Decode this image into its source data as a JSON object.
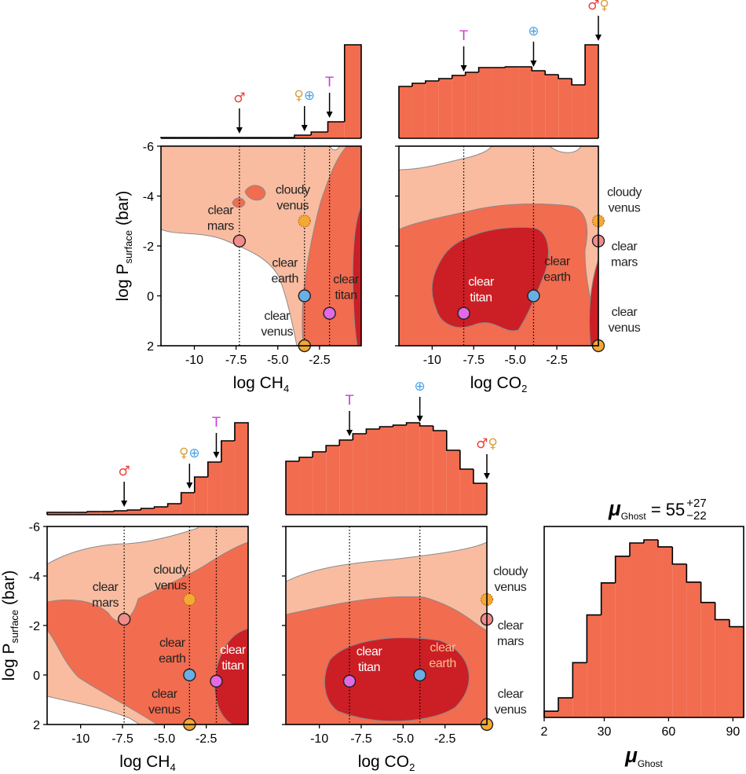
{
  "chart_data": [
    {
      "type": "corner",
      "xlabel": {
        "text": "log CH",
        "sub": "4"
      },
      "ylabel": {
        "text": "log P",
        "sub": "surface",
        "unit": " (bar)"
      },
      "xlim": [
        -12,
        0
      ],
      "ylim": [
        2,
        -6
      ],
      "xticks": [
        -10,
        -7.5,
        {
          "value": -5,
          "label": "-5.0"
        },
        -2.5
      ],
      "yticks": [
        -6,
        -4,
        -2,
        0,
        2
      ],
      "color": "#f26c4f",
      "bins": [
        -12,
        -11,
        -10,
        -9,
        -8,
        -7,
        -6,
        -5,
        -4,
        -3,
        -2,
        -1,
        0
      ],
      "counts": [
        1,
        1,
        1,
        1,
        1,
        1,
        1,
        1,
        4,
        8,
        21,
        119
      ],
      "arrows": [
        {
          "x": -7.3,
          "labels": [
            {
              "text": "♂",
              "color": "#e8413a"
            }
          ]
        },
        {
          "x": -3.4,
          "labels": [
            {
              "text": "♀",
              "color": "#d9a03a"
            },
            {
              "text": "⊕",
              "color": "#4aa3e8"
            }
          ]
        },
        {
          "x": -1.9,
          "labels": [
            {
              "text": "T",
              "color": "#c93dd6"
            }
          ]
        }
      ],
      "markers": [
        {
          "lines": [
            "clear",
            "mars"
          ],
          "x": -7.3,
          "y": -2.2,
          "color": "#f28c8c",
          "vline": true
        },
        {
          "lines": [
            "cloudy",
            "venus"
          ],
          "x": -3.4,
          "y": -3.0,
          "color": "#f5a833",
          "edge": "dotted"
        },
        {
          "lines": [
            "clear",
            "earth"
          ],
          "x": -3.4,
          "y": 0,
          "color": "#6aaee6",
          "vline": true
        },
        {
          "lines": [
            "clear",
            "titan"
          ],
          "x": -1.9,
          "y": 0.7,
          "color": "#e26ae6",
          "vline": true
        },
        {
          "lines": [
            "clear",
            "venus"
          ],
          "x": -3.4,
          "y": 2,
          "color": "#f5a833"
        }
      ]
    },
    {
      "type": "corner",
      "xlabel": {
        "text": "log CO",
        "sub": "2"
      },
      "xlim": [
        -12,
        0
      ],
      "ylim": [
        2,
        -6
      ],
      "xticks": [
        -10,
        -7.5,
        {
          "value": -5,
          "label": "-5.0"
        },
        -2.5
      ],
      "yticks": [
        -6,
        -4,
        -2,
        0,
        2
      ],
      "color": "#f26c4f",
      "bins": [
        -12,
        -11.2,
        -10.4,
        -9.6,
        -8.8,
        -8,
        -7.2,
        -6.4,
        -5.6,
        -4.8,
        -4,
        -3.2,
        -2.4,
        -1.6,
        -0.8,
        0
      ],
      "counts": [
        66,
        70,
        73,
        76,
        80,
        84,
        90,
        90,
        91,
        91,
        86,
        81,
        76,
        68,
        119
      ],
      "arrows": [
        {
          "x": -8.1,
          "labels": [
            {
              "text": "T",
              "color": "#c93dd6"
            }
          ]
        },
        {
          "x": -3.9,
          "labels": [
            {
              "text": "⊕",
              "color": "#4aa3e8"
            }
          ]
        },
        {
          "x": 0,
          "labels": [
            {
              "text": "♂",
              "color": "#e8413a"
            },
            {
              "text": "♀",
              "color": "#d9a03a"
            }
          ]
        }
      ],
      "markers": [
        {
          "lines": [
            "clear",
            "mars"
          ],
          "x": 0,
          "y": -2.2,
          "color": "#f28c8c"
        },
        {
          "lines": [
            "cloudy",
            "venus"
          ],
          "x": 0,
          "y": -3.0,
          "color": "#f5a833",
          "edge": "dotted"
        },
        {
          "lines": [
            "clear",
            "earth"
          ],
          "x": -3.9,
          "y": 0,
          "color": "#6aaee6",
          "vline": true
        },
        {
          "lines": [
            "clear",
            "titan"
          ],
          "x": -8.1,
          "y": 0.7,
          "color": "#e26ae6",
          "vline": true
        },
        {
          "lines": [
            "clear",
            "venus"
          ],
          "x": 0,
          "y": 2,
          "color": "#f5a833"
        }
      ]
    },
    {
      "type": "corner",
      "xlabel": {
        "text": "log CH",
        "sub": "4"
      },
      "ylabel": {
        "text": "log P",
        "sub": "surface",
        "unit": " (bar)"
      },
      "xlim": [
        -12,
        0
      ],
      "ylim": [
        2,
        -6
      ],
      "xticks": [
        -10,
        -7.5,
        {
          "value": -5,
          "label": "-5.0"
        },
        -2.5
      ],
      "yticks": [
        -6,
        -4,
        -2,
        0,
        2
      ],
      "color": "#f26c4f",
      "bins": [
        -12,
        -11.2,
        -10.4,
        -9.6,
        -8.8,
        -8,
        -7.2,
        -6.4,
        -5.6,
        -4.8,
        -4,
        -3.2,
        -2.4,
        -1.6,
        -0.8,
        0
      ],
      "counts": [
        3,
        3,
        3,
        4,
        4,
        5,
        6,
        8,
        10,
        14,
        28,
        48,
        67,
        94,
        117
      ],
      "arrows": [
        {
          "x": -7.4,
          "labels": [
            {
              "text": "♂",
              "color": "#e8413a"
            }
          ]
        },
        {
          "x": -3.5,
          "labels": [
            {
              "text": "♀",
              "color": "#d9a03a"
            },
            {
              "text": "⊕",
              "color": "#4aa3e8"
            }
          ]
        },
        {
          "x": -1.9,
          "labels": [
            {
              "text": "T",
              "color": "#c93dd6"
            }
          ]
        }
      ],
      "markers": [
        {
          "lines": [
            "clear",
            "mars"
          ],
          "x": -7.4,
          "y": -2.25,
          "color": "#f28c8c",
          "vline": true
        },
        {
          "lines": [
            "cloudy",
            "venus"
          ],
          "x": -3.5,
          "y": -3.05,
          "color": "#f5a833",
          "edge": "dotted"
        },
        {
          "lines": [
            "clear",
            "earth"
          ],
          "x": -3.5,
          "y": 0,
          "color": "#6aaee6",
          "vline": true
        },
        {
          "lines": [
            "clear",
            "titan"
          ],
          "x": -1.9,
          "y": 0.25,
          "color": "#e26ae6",
          "vline": true
        },
        {
          "lines": [
            "clear",
            "venus"
          ],
          "x": -3.5,
          "y": 2,
          "color": "#f5a833"
        }
      ]
    },
    {
      "type": "corner",
      "xlabel": {
        "text": "log CO",
        "sub": "2"
      },
      "xlim": [
        -12,
        0
      ],
      "ylim": [
        2,
        -6
      ],
      "xticks": [
        -10,
        -7.5,
        {
          "value": -5,
          "label": "-5.0"
        },
        -2.5
      ],
      "yticks": [
        -6,
        -4,
        -2,
        0,
        2
      ],
      "color": "#f26c4f",
      "bins": [
        -12,
        -11.2,
        -10.4,
        -9.6,
        -8.8,
        -8,
        -7.2,
        -6.4,
        -5.6,
        -4.8,
        -4,
        -3.2,
        -2.4,
        -1.6,
        -0.8,
        0
      ],
      "counts": [
        68,
        73,
        80,
        88,
        95,
        103,
        109,
        112,
        114,
        117,
        113,
        107,
        82,
        58,
        40
      ],
      "arrows": [
        {
          "x": -8.2,
          "labels": [
            {
              "text": "T",
              "color": "#c93dd6"
            }
          ]
        },
        {
          "x": -4.0,
          "labels": [
            {
              "text": "⊕",
              "color": "#4aa3e8"
            }
          ]
        },
        {
          "x": 0,
          "labels": [
            {
              "text": "♂",
              "color": "#e8413a"
            },
            {
              "text": "♀",
              "color": "#d9a03a"
            }
          ]
        }
      ],
      "markers": [
        {
          "lines": [
            "clear",
            "mars"
          ],
          "x": 0,
          "y": -2.25,
          "color": "#f28c8c"
        },
        {
          "lines": [
            "cloudy",
            "venus"
          ],
          "x": 0,
          "y": -3.05,
          "color": "#f5a833",
          "edge": "dotted"
        },
        {
          "lines": [
            "clear",
            "earth"
          ],
          "x": -4.0,
          "y": 0,
          "color": "#6aaee6",
          "vline": true
        },
        {
          "lines": [
            "clear",
            "titan"
          ],
          "x": -8.2,
          "y": 0.25,
          "color": "#e26ae6",
          "vline": true
        },
        {
          "lines": [
            "clear",
            "venus"
          ],
          "x": 0,
          "y": 2,
          "color": "#f5a833"
        }
      ]
    },
    {
      "type": "histogram",
      "title": {
        "symbol": "μ",
        "sub": "Ghost",
        "text": " = 55",
        "upper": "+27",
        "lower": "−22"
      },
      "xlabel": {
        "text": "μ",
        "sub": "Ghost"
      },
      "xlim": [
        2,
        95
      ],
      "xticks": [
        2,
        30,
        60,
        90
      ],
      "color": "#f26c4f",
      "bins": [
        2,
        8.6,
        15.3,
        21.9,
        28.6,
        35.2,
        41.9,
        48.5,
        55.1,
        61.8,
        68.4,
        75.1,
        81.7,
        88.4,
        95
      ],
      "counts": [
        8,
        25,
        70,
        131,
        172,
        206,
        223,
        227,
        218,
        196,
        173,
        147,
        125,
        116
      ]
    }
  ]
}
